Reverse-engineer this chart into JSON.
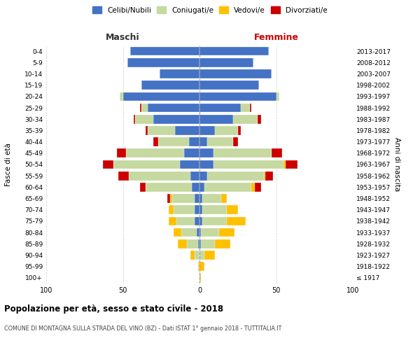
{
  "age_groups": [
    "100+",
    "95-99",
    "90-94",
    "85-89",
    "80-84",
    "75-79",
    "70-74",
    "65-69",
    "60-64",
    "55-59",
    "50-54",
    "45-49",
    "40-44",
    "35-39",
    "30-34",
    "25-29",
    "20-24",
    "15-19",
    "10-14",
    "5-9",
    "0-4"
  ],
  "birth_years": [
    "≤ 1917",
    "1918-1922",
    "1923-1927",
    "1928-1932",
    "1933-1937",
    "1938-1942",
    "1943-1947",
    "1948-1952",
    "1953-1957",
    "1958-1962",
    "1963-1967",
    "1968-1972",
    "1973-1977",
    "1978-1982",
    "1983-1987",
    "1988-1992",
    "1993-1997",
    "1998-2002",
    "2003-2007",
    "2008-2012",
    "2013-2017"
  ],
  "colors": {
    "celibe": "#4472c4",
    "coniugato": "#c5d9a0",
    "vedovo": "#ffc000",
    "divorziato": "#cc0000"
  },
  "maschi": {
    "celibe": [
      0,
      0,
      0,
      1,
      2,
      3,
      3,
      3,
      5,
      6,
      13,
      10,
      7,
      16,
      30,
      34,
      50,
      38,
      26,
      47,
      45
    ],
    "coniugato": [
      0,
      0,
      3,
      7,
      10,
      12,
      14,
      15,
      30,
      40,
      43,
      38,
      20,
      18,
      12,
      4,
      2,
      0,
      0,
      0,
      0
    ],
    "vedovo": [
      0,
      1,
      3,
      6,
      5,
      5,
      3,
      1,
      0,
      0,
      0,
      0,
      0,
      0,
      0,
      0,
      0,
      0,
      0,
      0,
      0
    ],
    "divorziato": [
      0,
      0,
      0,
      0,
      0,
      0,
      0,
      2,
      4,
      7,
      7,
      6,
      3,
      1,
      1,
      1,
      0,
      0,
      0,
      0,
      0
    ]
  },
  "femmine": {
    "nubile": [
      0,
      0,
      0,
      1,
      1,
      2,
      2,
      2,
      3,
      5,
      9,
      9,
      5,
      10,
      22,
      27,
      50,
      39,
      47,
      35,
      45
    ],
    "coniugata": [
      0,
      0,
      3,
      9,
      12,
      16,
      16,
      12,
      31,
      37,
      46,
      38,
      17,
      15,
      16,
      6,
      2,
      0,
      0,
      0,
      0
    ],
    "vedova": [
      1,
      3,
      7,
      10,
      10,
      12,
      7,
      4,
      2,
      1,
      1,
      0,
      0,
      0,
      0,
      0,
      0,
      0,
      0,
      0,
      0
    ],
    "divorziata": [
      0,
      0,
      0,
      0,
      0,
      0,
      0,
      0,
      4,
      5,
      8,
      7,
      3,
      2,
      2,
      1,
      0,
      0,
      0,
      0,
      0
    ]
  },
  "title": "Popolazione per età, sesso e stato civile - 2018",
  "subtitle": "COMUNE DI MONTAGNA SULLA STRADA DEL VINO (BZ) - Dati ISTAT 1° gennaio 2018 - TUTTITALIA.IT",
  "xlabel_left": "Maschi",
  "xlabel_right": "Femmine",
  "ylabel_left": "Fasce di età",
  "ylabel_right": "Anni di nascita",
  "xlim": 100,
  "legend_labels": [
    "Celibi/Nubili",
    "Coniugati/e",
    "Vedovi/e",
    "Divorziati/e"
  ],
  "bg_color": "#ffffff",
  "grid_color": "#cccccc"
}
